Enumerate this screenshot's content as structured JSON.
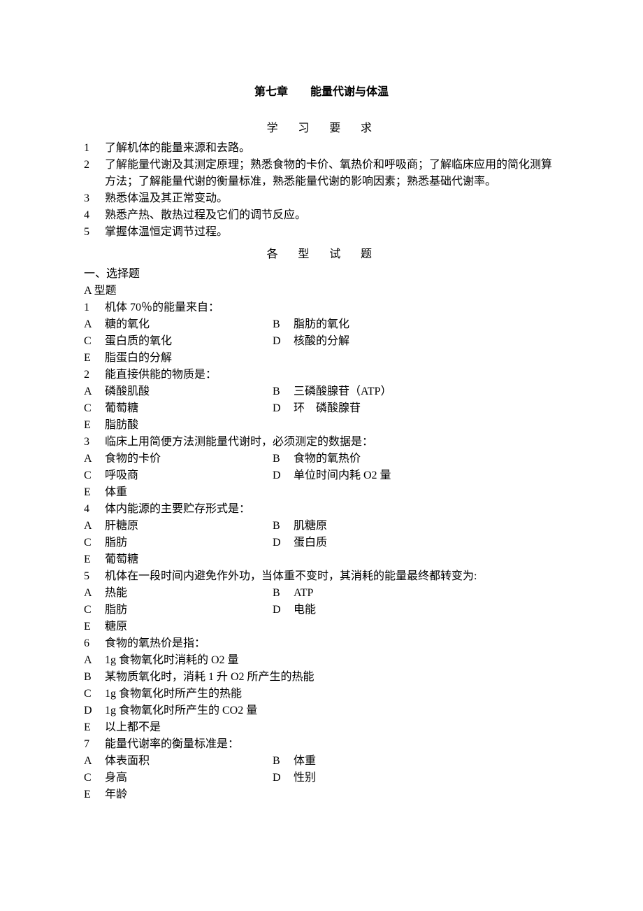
{
  "chapter_title": "第七章　　能量代谢与体温",
  "study_req_label": "学　习　要　求",
  "requirements": [
    {
      "n": "1",
      "t": "了解机体的能量来源和去路。"
    },
    {
      "n": "2",
      "t": "了解能量代谢及其测定原理；熟悉食物的卡价、氧热价和呼吸商；了解临床应用的简化测算方法；了解能量代谢的衡量标准，熟悉能量代谢的影响因素；熟悉基础代谢率。"
    },
    {
      "n": "3",
      "t": "熟悉体温及其正常变动。"
    },
    {
      "n": "4",
      "t": "熟悉产热、散热过程及它们的调节反应。"
    },
    {
      "n": "5",
      "t": "掌握体温恒定调节过程。"
    }
  ],
  "question_label": "各　型　试　题",
  "section_heading": "一、选择题",
  "sub_heading": "A 型题",
  "questions": [
    {
      "n": "1",
      "stem": "机体 70％的能量来自：",
      "layout": "2col",
      "opts": [
        {
          "l": "A",
          "t": "糖的氧化"
        },
        {
          "l": "B",
          "t": "脂肪的氧化"
        },
        {
          "l": "C",
          "t": "蛋白质的氧化"
        },
        {
          "l": "D",
          "t": "核酸的分解"
        },
        {
          "l": "E",
          "t": "脂蛋白的分解"
        }
      ]
    },
    {
      "n": "2",
      "stem": "能直接供能的物质是：",
      "layout": "2col",
      "opts": [
        {
          "l": "A",
          "t": "磷酸肌酸"
        },
        {
          "l": "B",
          "t": "三磷酸腺苷（ATP）"
        },
        {
          "l": "C",
          "t": "葡萄糖"
        },
        {
          "l": "D",
          "t": "环　磷酸腺苷"
        },
        {
          "l": "E",
          "t": "脂肪酸"
        }
      ]
    },
    {
      "n": "3",
      "stem": "临床上用简便方法测能量代谢时，必须测定的数据是：",
      "layout": "2col",
      "opts": [
        {
          "l": "A",
          "t": "食物的卡价"
        },
        {
          "l": "B",
          "t": "食物的氧热价"
        },
        {
          "l": "C",
          "t": "呼吸商"
        },
        {
          "l": "D",
          "t": "单位时间内耗 O2 量"
        },
        {
          "l": "E",
          "t": "体重"
        }
      ]
    },
    {
      "n": "4",
      "stem": "体内能源的主要贮存形式是：",
      "layout": "2col",
      "opts": [
        {
          "l": "A",
          "t": "肝糖原"
        },
        {
          "l": "B",
          "t": "肌糖原"
        },
        {
          "l": "C",
          "t": "脂肪"
        },
        {
          "l": "D",
          "t": "蛋白质"
        },
        {
          "l": "E",
          "t": "葡萄糖"
        }
      ]
    },
    {
      "n": "5",
      "stem": "机体在一段时间内避免作外功，当体重不变时，其消耗的能量最终都转变为:",
      "layout": "2col",
      "opts": [
        {
          "l": "A",
          "t": "热能"
        },
        {
          "l": "B",
          "t": "ATP"
        },
        {
          "l": "C",
          "t": "脂肪"
        },
        {
          "l": "D",
          "t": "电能"
        },
        {
          "l": "E",
          "t": "糖原"
        }
      ]
    },
    {
      "n": "6",
      "stem": "食物的氧热价是指：",
      "layout": "1col",
      "opts": [
        {
          "l": "A",
          "t": "1g 食物氧化时消耗的 O2 量"
        },
        {
          "l": "B",
          "t": "某物质氧化时，消耗 1 升 O2 所产生的热能"
        },
        {
          "l": "C",
          "t": "1g 食物氧化时所产生的热能"
        },
        {
          "l": "D",
          "t": "1g 食物氧化时所产生的 CO2 量"
        },
        {
          "l": "E",
          "t": "以上都不是"
        }
      ]
    },
    {
      "n": "7",
      "stem": "能量代谢率的衡量标准是：",
      "layout": "2col",
      "opts": [
        {
          "l": "A",
          "t": "体表面积"
        },
        {
          "l": "B",
          "t": "体重"
        },
        {
          "l": "C",
          "t": "身高"
        },
        {
          "l": "D",
          "t": "性别"
        },
        {
          "l": "E",
          "t": "年龄"
        }
      ]
    }
  ]
}
